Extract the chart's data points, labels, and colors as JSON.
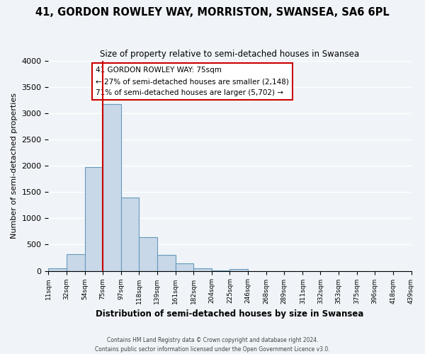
{
  "title": "41, GORDON ROWLEY WAY, MORRISTON, SWANSEA, SA6 6PL",
  "subtitle": "Size of property relative to semi-detached houses in Swansea",
  "xlabel": "Distribution of semi-detached houses by size in Swansea",
  "ylabel": "Number of semi-detached properties",
  "bin_edges": [
    11,
    32,
    54,
    75,
    97,
    118,
    139,
    161,
    182,
    204,
    225,
    246,
    268,
    289,
    311,
    332,
    353,
    375,
    396,
    418,
    439
  ],
  "bar_values": [
    50,
    320,
    1980,
    3170,
    1400,
    640,
    310,
    140,
    50,
    10,
    30,
    0,
    0,
    0,
    0,
    0,
    0,
    0,
    0,
    0
  ],
  "bar_color": "#c8d8e8",
  "bar_edge_color": "#6699bb",
  "vline_value": 75,
  "vline_color": "#cc0000",
  "ylim": [
    0,
    4000
  ],
  "yticks": [
    0,
    500,
    1000,
    1500,
    2000,
    2500,
    3000,
    3500,
    4000
  ],
  "tick_labels": [
    "11sqm",
    "32sqm",
    "54sqm",
    "75sqm",
    "97sqm",
    "118sqm",
    "139sqm",
    "161sqm",
    "182sqm",
    "204sqm",
    "225sqm",
    "246sqm",
    "268sqm",
    "289sqm",
    "311sqm",
    "332sqm",
    "353sqm",
    "375sqm",
    "396sqm",
    "418sqm",
    "439sqm"
  ],
  "annotation_title": "41 GORDON ROWLEY WAY: 75sqm",
  "annotation_line1": "← 27% of semi-detached houses are smaller (2,148)",
  "annotation_line2": "71% of semi-detached houses are larger (5,702) →",
  "annotation_box_color": "#ffffff",
  "annotation_box_edge": "#cc0000",
  "footer_line1": "Contains HM Land Registry data © Crown copyright and database right 2024.",
  "footer_line2": "Contains public sector information licensed under the Open Government Licence v3.0.",
  "background_color": "#f0f4f8",
  "grid_color": "#ffffff"
}
